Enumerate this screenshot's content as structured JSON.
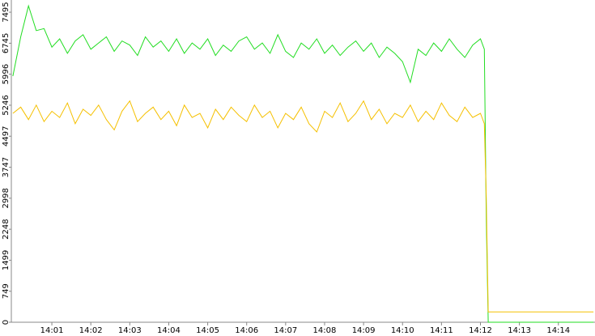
{
  "chart_data": {
    "type": "line",
    "x": [
      0,
      0.2,
      0.4,
      0.6,
      0.8,
      1,
      1.2,
      1.4,
      1.6,
      1.8,
      2,
      2.2,
      2.4,
      2.6,
      2.8,
      3,
      3.2,
      3.4,
      3.6,
      3.8,
      4,
      4.2,
      4.4,
      4.6,
      4.8,
      5,
      5.2,
      5.4,
      5.6,
      5.8,
      6,
      6.2,
      6.4,
      6.6,
      6.8,
      7,
      7.2,
      7.4,
      7.6,
      7.8,
      8,
      8.2,
      8.4,
      8.6,
      8.8,
      9,
      9.2,
      9.4,
      9.6,
      9.8,
      10,
      10.2,
      10.4,
      10.6,
      10.8,
      11,
      11.2,
      11.4,
      11.6,
      11.8,
      12,
      12.1,
      12.15,
      12.2,
      14.9
    ],
    "series": [
      {
        "color": "#22dd22",
        "values": [
          5950,
          6900,
          7650,
          7050,
          7100,
          6650,
          6850,
          6500,
          6800,
          6950,
          6600,
          6750,
          6900,
          6550,
          6800,
          6700,
          6450,
          6900,
          6650,
          6800,
          6550,
          6850,
          6500,
          6750,
          6600,
          6850,
          6450,
          6700,
          6550,
          6800,
          6900,
          6600,
          6750,
          6500,
          6950,
          6550,
          6400,
          6750,
          6600,
          6850,
          6500,
          6700,
          6450,
          6650,
          6800,
          6550,
          6750,
          6400,
          6650,
          6500,
          6300,
          5800,
          6600,
          6450,
          6750,
          6550,
          6850,
          6600,
          6400,
          6700,
          6850,
          6600,
          2500,
          0,
          0
        ]
      },
      {
        "color": "#f5c000",
        "values": [
          5050,
          5200,
          4900,
          5250,
          4850,
          5100,
          4950,
          5300,
          4800,
          5150,
          5000,
          5250,
          4900,
          4650,
          5100,
          5350,
          4850,
          5050,
          5200,
          4900,
          5100,
          4750,
          5250,
          4950,
          5050,
          4700,
          5150,
          4900,
          5200,
          5000,
          4850,
          5250,
          4950,
          5100,
          4700,
          5050,
          4900,
          5200,
          4800,
          4600,
          5100,
          4950,
          5300,
          4850,
          5050,
          5350,
          4900,
          5150,
          4800,
          5050,
          4950,
          5250,
          4850,
          5100,
          4900,
          5300,
          5000,
          4850,
          5200,
          4950,
          5050,
          4800,
          3000,
          250,
          250
        ]
      }
    ],
    "xlim": [
      -0.04,
      14.94
    ],
    "xticks": [
      {
        "value": 1,
        "label": "14:01"
      },
      {
        "value": 2,
        "label": "14:02"
      },
      {
        "value": 3,
        "label": "14:03"
      },
      {
        "value": 4,
        "label": "14:04"
      },
      {
        "value": 5,
        "label": "14:05"
      },
      {
        "value": 6,
        "label": "14:06"
      },
      {
        "value": 7,
        "label": "14:07"
      },
      {
        "value": 8,
        "label": "14:08"
      },
      {
        "value": 9,
        "label": "14:09"
      },
      {
        "value": 10,
        "label": "14:10"
      },
      {
        "value": 11,
        "label": "14:11"
      },
      {
        "value": 12,
        "label": "14:12"
      },
      {
        "value": 13,
        "label": "14:13"
      },
      {
        "value": 14,
        "label": "14:14"
      }
    ],
    "ylim": [
      0,
      7790
    ],
    "yticks": [
      0,
      749,
      1499,
      2248,
      2998,
      3747,
      4497,
      5246,
      5996,
      6745,
      7495
    ]
  }
}
